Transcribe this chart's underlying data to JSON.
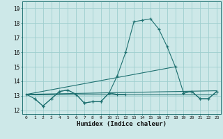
{
  "xlabel": "Humidex (Indice chaleur)",
  "bg_color": "#cde8e8",
  "grid_color": "#9ecece",
  "line_color": "#1e7070",
  "xlim": [
    -0.5,
    23.5
  ],
  "ylim": [
    11.75,
    19.5
  ],
  "xticks": [
    0,
    1,
    2,
    3,
    4,
    5,
    6,
    7,
    8,
    9,
    10,
    11,
    12,
    13,
    14,
    15,
    16,
    17,
    18,
    19,
    20,
    21,
    22,
    23
  ],
  "yticks": [
    12,
    13,
    14,
    15,
    16,
    17,
    18,
    19
  ],
  "curve_main": [
    13.1,
    12.8,
    12.3,
    12.8,
    13.3,
    13.4,
    13.1,
    12.5,
    12.6,
    12.6,
    13.2,
    14.4,
    16.0,
    18.1,
    18.2,
    18.3,
    17.6,
    16.4,
    15.0,
    13.2,
    13.3,
    12.8,
    12.8,
    13.3
  ],
  "line_diag": [
    [
      0,
      13.1
    ],
    [
      18,
      15.0
    ]
  ],
  "line_flat1": [
    [
      0,
      13.1
    ],
    [
      23,
      13.35
    ]
  ],
  "line_flat2": [
    [
      0,
      13.1
    ],
    [
      23,
      13.1
    ]
  ],
  "curve_low": [
    [
      1,
      12.8
    ],
    [
      2,
      12.3
    ],
    [
      3,
      12.8
    ],
    [
      4,
      13.3
    ],
    [
      5,
      13.4
    ],
    [
      6,
      13.1
    ],
    [
      7,
      12.5
    ],
    [
      8,
      12.6
    ],
    [
      9,
      12.6
    ],
    [
      10,
      13.2
    ],
    [
      11,
      13.1
    ],
    [
      12,
      13.1
    ],
    [
      19,
      13.2
    ],
    [
      20,
      13.3
    ],
    [
      21,
      12.8
    ],
    [
      22,
      12.8
    ],
    [
      23,
      13.3
    ]
  ]
}
